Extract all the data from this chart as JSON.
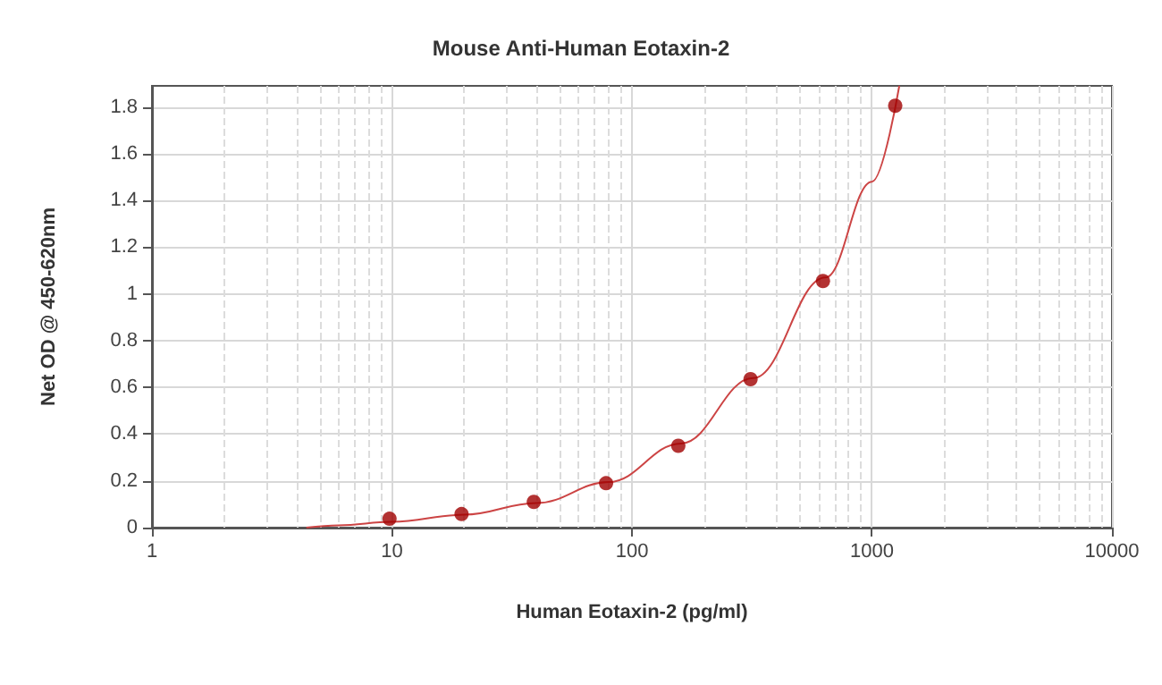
{
  "chart_data": {
    "type": "scatter",
    "title": "Mouse Anti-Human Eotaxin-2",
    "xlabel": "Human Eotaxin-2 (pg/ml)",
    "ylabel": "Net OD @ 450-620nm",
    "log": "x",
    "grid": true,
    "marker": "circle",
    "xlim": [
      1,
      10000
    ],
    "xticks": [
      1,
      10,
      100,
      1000,
      10000
    ],
    "ylim": [
      0,
      1.89
    ],
    "yticks": [
      0,
      0.2,
      0.4,
      0.6,
      0.8,
      1,
      1.2,
      1.4,
      1.6,
      1.8
    ],
    "series": [
      {
        "color": "#a00000",
        "x": [
          9.77,
          19.5,
          39,
          78,
          156,
          312,
          625,
          1250
        ],
        "values": [
          0.038,
          0.058,
          0.11,
          0.19,
          0.35,
          0.635,
          1.055,
          1.805
        ]
      },
      {
        "type": "line",
        "color": "#cc4444",
        "marker": "none",
        "x": [
          4.4,
          6,
          10,
          20,
          40,
          80,
          160,
          320,
          640,
          1000,
          1300
        ],
        "values": [
          0,
          0.01,
          0.025,
          0.055,
          0.105,
          0.195,
          0.36,
          0.64,
          1.07,
          1.48,
          1.89
        ]
      }
    ]
  }
}
